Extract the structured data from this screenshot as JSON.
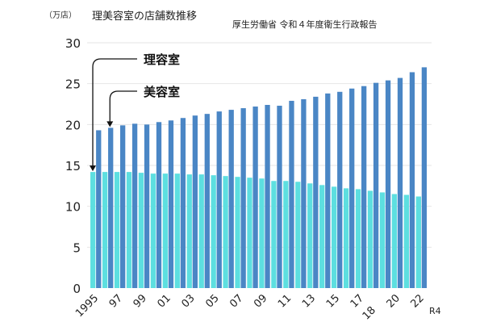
{
  "chart_data": {
    "type": "bar",
    "title": "理美容室の店舗数推移",
    "unit_label": "（万店）",
    "source": "厚生労働省 令和４年度衛生行政報告",
    "categories": [
      "1995",
      "1996",
      "1997",
      "1998",
      "1999",
      "2000",
      "2001",
      "2002",
      "2003",
      "2004",
      "2005",
      "2006",
      "2007",
      "2008",
      "2009",
      "2010",
      "2011",
      "2012",
      "2013",
      "2014",
      "2015",
      "2016",
      "2017",
      "2018",
      "2019",
      "2020",
      "2021",
      "2022"
    ],
    "tick_labels": [
      {
        "index": 0,
        "label": "1995"
      },
      {
        "index": 2,
        "label": "97"
      },
      {
        "index": 4,
        "label": "99"
      },
      {
        "index": 6,
        "label": "01"
      },
      {
        "index": 8,
        "label": "03"
      },
      {
        "index": 10,
        "label": "05"
      },
      {
        "index": 12,
        "label": "07"
      },
      {
        "index": 14,
        "label": "09"
      },
      {
        "index": 16,
        "label": "11"
      },
      {
        "index": 18,
        "label": "13"
      },
      {
        "index": 20,
        "label": "15"
      },
      {
        "index": 22,
        "label": "17"
      },
      {
        "index": 23,
        "label": "18"
      },
      {
        "index": 25,
        "label": "20"
      },
      {
        "index": 27,
        "label": "22"
      }
    ],
    "last_tick_sublabel": "R4",
    "series": [
      {
        "name": "理容室",
        "color": "#5ddfe0",
        "values": [
          14.2,
          14.2,
          14.2,
          14.2,
          14.1,
          14.0,
          14.0,
          14.0,
          13.9,
          13.9,
          13.8,
          13.7,
          13.6,
          13.5,
          13.4,
          13.1,
          13.1,
          13.0,
          12.8,
          12.6,
          12.4,
          12.2,
          12.1,
          11.9,
          11.7,
          11.5,
          11.4,
          11.2
        ]
      },
      {
        "name": "美容室",
        "color": "#4a86c5",
        "values": [
          19.3,
          19.6,
          19.9,
          20.1,
          20.0,
          20.3,
          20.5,
          20.8,
          21.1,
          21.3,
          21.6,
          21.8,
          22.0,
          22.2,
          22.4,
          22.3,
          22.9,
          23.1,
          23.4,
          23.8,
          24.0,
          24.4,
          24.7,
          25.1,
          25.4,
          25.7,
          26.4,
          27.0
        ]
      }
    ],
    "yticks": [
      "0",
      "5",
      "10",
      "15",
      "20",
      "25",
      "30"
    ],
    "ylim": [
      0,
      30
    ],
    "grid": true,
    "legend": "annotated arrows top-left"
  }
}
